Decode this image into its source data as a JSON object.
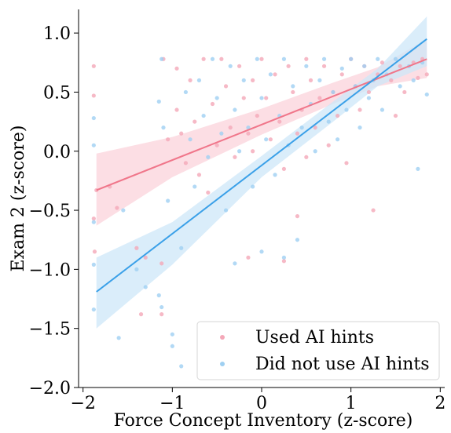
{
  "chart_data": {
    "type": "scatter",
    "title": "",
    "xlabel": "Force Concept Inventory (z-score)",
    "ylabel": "Exam 2 (z-score)",
    "xlim": [
      -2.05,
      2.05
    ],
    "ylim": [
      -2.0,
      1.2
    ],
    "xticks": [
      -2,
      -1,
      0,
      1,
      2
    ],
    "xtick_labels": [
      "−2",
      "−1",
      "0",
      "1",
      "2"
    ],
    "yticks": [
      -2.0,
      -1.5,
      -1.0,
      -0.5,
      0.0,
      0.5,
      1.0
    ],
    "ytick_labels": [
      "−2.0",
      "−1.5",
      "−1.0",
      "−0.5",
      "0.0",
      "0.5",
      "1.0"
    ],
    "grid": false,
    "legend_position": "lower-right",
    "series": [
      {
        "name": "Used AI hints",
        "color": "#f0768a",
        "point_color": "#f4a8b8",
        "band_color": "#fbd3db",
        "regression": {
          "x0": -1.85,
          "y0": -0.33,
          "x1": 1.85,
          "y1": 0.78
        },
        "band_lower": [
          [
            -1.85,
            -0.63
          ],
          [
            -1.0,
            -0.22
          ],
          [
            0.0,
            0.14
          ],
          [
            0.8,
            0.4
          ],
          [
            1.3,
            0.55
          ],
          [
            1.85,
            0.62
          ]
        ],
        "band_upper": [
          [
            -1.85,
            -0.02
          ],
          [
            -1.0,
            0.12
          ],
          [
            0.0,
            0.36
          ],
          [
            0.8,
            0.58
          ],
          [
            1.3,
            0.71
          ],
          [
            1.85,
            0.95
          ]
        ],
        "points": [
          [
            -1.88,
            0.72
          ],
          [
            -1.88,
            0.47
          ],
          [
            -1.88,
            -0.57
          ],
          [
            -1.85,
            -0.33
          ],
          [
            -1.87,
            -0.85
          ],
          [
            -1.62,
            -0.48
          ],
          [
            -1.4,
            -0.82
          ],
          [
            -1.3,
            -0.9
          ],
          [
            -1.35,
            -1.38
          ],
          [
            -1.12,
            -1.38
          ],
          [
            -1.12,
            -0.95
          ],
          [
            -1.1,
            0.78
          ],
          [
            -1.05,
            0.1
          ],
          [
            -0.95,
            0.7
          ],
          [
            -0.95,
            0.35
          ],
          [
            -0.9,
            0.15
          ],
          [
            -0.85,
            -0.1
          ],
          [
            -0.8,
            0.6
          ],
          [
            -0.75,
            0.25
          ],
          [
            -0.7,
            -0.2
          ],
          [
            -0.65,
            0.78
          ],
          [
            -0.55,
            0.4
          ],
          [
            -0.5,
            0.05
          ],
          [
            -0.45,
            0.78
          ],
          [
            -0.4,
            0.55
          ],
          [
            -0.35,
            0.2
          ],
          [
            -0.3,
            -0.05
          ],
          [
            -0.25,
            0.72
          ],
          [
            -0.2,
            0.45
          ],
          [
            -0.15,
            0.15
          ],
          [
            -0.1,
            0.6
          ],
          [
            -0.1,
            0.0
          ],
          [
            -0.05,
            0.3
          ],
          [
            -0.15,
            -0.9
          ],
          [
            0.0,
            0.78
          ],
          [
            0.05,
            0.45
          ],
          [
            0.1,
            0.1
          ],
          [
            0.15,
            0.65
          ],
          [
            0.2,
            0.25
          ],
          [
            0.25,
            -0.15
          ],
          [
            0.3,
            0.72
          ],
          [
            0.35,
            0.5
          ],
          [
            0.4,
            0.15
          ],
          [
            0.45,
            0.35
          ],
          [
            0.5,
            0.78
          ],
          [
            0.5,
            -0.05
          ],
          [
            0.55,
            0.6
          ],
          [
            0.6,
            0.2
          ],
          [
            0.65,
            0.45
          ],
          [
            0.7,
            0.72
          ],
          [
            0.75,
            0.05
          ],
          [
            0.8,
            0.5
          ],
          [
            0.85,
            0.3
          ],
          [
            0.9,
            0.65
          ],
          [
            0.95,
            -0.1
          ],
          [
            1.0,
            0.78
          ],
          [
            1.05,
            0.55
          ],
          [
            1.1,
            0.35
          ],
          [
            1.15,
            0.72
          ],
          [
            1.2,
            0.5
          ],
          [
            1.25,
            -0.5
          ],
          [
            1.3,
            0.65
          ],
          [
            1.35,
            0.75
          ],
          [
            1.45,
            0.6
          ],
          [
            1.5,
            0.3
          ],
          [
            1.55,
            0.72
          ],
          [
            1.6,
            0.5
          ],
          [
            1.7,
            0.75
          ],
          [
            1.75,
            0.62
          ],
          [
            1.8,
            0.78
          ],
          [
            1.85,
            0.65
          ],
          [
            0.25,
            -0.93
          ],
          [
            0.4,
            -0.55
          ],
          [
            -0.6,
            -0.35
          ],
          [
            -1.7,
            -0.3
          ]
        ]
      },
      {
        "name": "Did not use AI hints",
        "color": "#3aa0e8",
        "point_color": "#9fd0f2",
        "band_color": "#cde7f8",
        "regression": {
          "x0": -1.85,
          "y0": -1.19,
          "x1": 1.85,
          "y1": 0.95
        },
        "band_lower": [
          [
            -1.85,
            -1.5
          ],
          [
            -1.0,
            -0.96
          ],
          [
            0.0,
            -0.22
          ],
          [
            0.8,
            0.25
          ],
          [
            1.3,
            0.55
          ],
          [
            1.85,
            0.72
          ]
        ],
        "band_upper": [
          [
            -1.85,
            -0.9
          ],
          [
            -1.0,
            -0.6
          ],
          [
            0.0,
            -0.04
          ],
          [
            0.8,
            0.42
          ],
          [
            1.3,
            0.7
          ],
          [
            1.85,
            1.14
          ]
        ],
        "points": [
          [
            -1.88,
            0.28
          ],
          [
            -1.88,
            0.05
          ],
          [
            -1.88,
            -0.6
          ],
          [
            -1.88,
            -0.96
          ],
          [
            -1.88,
            -1.34
          ],
          [
            -1.6,
            -1.58
          ],
          [
            -1.55,
            -0.5
          ],
          [
            -1.4,
            -1.0
          ],
          [
            -1.3,
            -1.15
          ],
          [
            -1.15,
            -1.22
          ],
          [
            -1.12,
            -1.32
          ],
          [
            -1.12,
            0.78
          ],
          [
            -1.15,
            0.42
          ],
          [
            -1.1,
            0.2
          ],
          [
            -1.05,
            -0.42
          ],
          [
            -1.0,
            -1.55
          ],
          [
            -1.0,
            -1.65
          ],
          [
            -0.9,
            -0.82
          ],
          [
            -0.9,
            -1.82
          ],
          [
            -0.85,
            0.5
          ],
          [
            -0.8,
            0.1
          ],
          [
            -0.75,
            -0.3
          ],
          [
            -0.7,
            0.6
          ],
          [
            -0.65,
            0.3
          ],
          [
            -0.6,
            -0.05
          ],
          [
            -0.55,
            0.78
          ],
          [
            -0.5,
            0.45
          ],
          [
            -0.45,
            0.15
          ],
          [
            -0.4,
            -0.5
          ],
          [
            -0.35,
            0.72
          ],
          [
            -0.3,
            0.35
          ],
          [
            -0.3,
            -0.95
          ],
          [
            -0.25,
            0.0
          ],
          [
            -0.2,
            0.6
          ],
          [
            -0.15,
            0.2
          ],
          [
            -0.1,
            -0.3
          ],
          [
            -0.05,
            0.78
          ],
          [
            0.0,
            0.45
          ],
          [
            0.05,
            0.1
          ],
          [
            0.0,
            -0.85
          ],
          [
            0.1,
            0.65
          ],
          [
            0.15,
            -0.2
          ],
          [
            0.2,
            0.3
          ],
          [
            0.25,
            0.78
          ],
          [
            0.25,
            -0.9
          ],
          [
            0.3,
            0.05
          ],
          [
            0.35,
            0.55
          ],
          [
            0.4,
            -0.75
          ],
          [
            0.45,
            0.2
          ],
          [
            0.5,
            0.72
          ],
          [
            0.55,
            0.4
          ],
          [
            0.6,
            0.0
          ],
          [
            0.65,
            0.6
          ],
          [
            0.7,
            0.78
          ],
          [
            0.75,
            0.25
          ],
          [
            0.8,
            0.5
          ],
          [
            0.85,
            0.1
          ],
          [
            0.9,
            0.7
          ],
          [
            0.95,
            0.35
          ],
          [
            1.0,
            0.78
          ],
          [
            1.05,
            0.55
          ],
          [
            1.1,
            0.2
          ],
          [
            1.15,
            0.72
          ],
          [
            1.2,
            0.45
          ],
          [
            1.25,
            0.6
          ],
          [
            1.3,
            0.78
          ],
          [
            1.35,
            0.35
          ],
          [
            1.4,
            0.65
          ],
          [
            1.5,
            0.78
          ],
          [
            1.55,
            0.55
          ],
          [
            1.65,
            0.72
          ],
          [
            1.7,
            0.6
          ],
          [
            1.75,
            -0.15
          ],
          [
            1.8,
            0.75
          ],
          [
            1.85,
            0.48
          ]
        ]
      }
    ]
  }
}
